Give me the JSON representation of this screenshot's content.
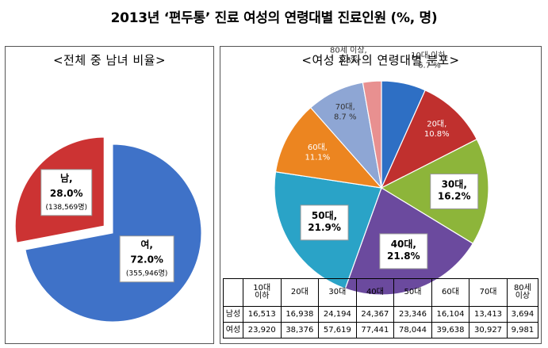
{
  "title": "2013년 ‘편두통’ 진료 여성의 연령대별 진료인원 (%, 명)",
  "left_panel": {
    "title": "<전체 중 남녀 비율>"
  },
  "right_panel": {
    "title": "<여성 환자의 연령대별 분포>"
  },
  "chart_data": [
    {
      "type": "pie",
      "title": "<전체 중 남녀 비율>",
      "slices": [
        {
          "label": "여,",
          "value": 72.0,
          "display": "72.0%",
          "count": "(355,946명)",
          "color": "#3f72c8"
        },
        {
          "label": "남,",
          "value": 28.0,
          "display": "28.0%",
          "count": "(138,569명)",
          "color": "#cc3333"
        }
      ]
    },
    {
      "type": "pie",
      "title": "<여성 환자의 연령대별 분포>",
      "slices": [
        {
          "label": "10대 이하,",
          "value": 6.7,
          "display": "6.7 %",
          "color": "#2e6fc4"
        },
        {
          "label": "20대,",
          "value": 10.8,
          "display": "10.8%",
          "color": "#c0302e"
        },
        {
          "label": "30대,",
          "value": 16.2,
          "display": "16.2%",
          "color": "#8db53a"
        },
        {
          "label": "40대,",
          "value": 21.8,
          "display": "21.8%",
          "color": "#6b4a9e"
        },
        {
          "label": "50대,",
          "value": 21.9,
          "display": "21.9%",
          "color": "#2aa3c7"
        },
        {
          "label": "60대,",
          "value": 11.1,
          "display": "11.1%",
          "color": "#ec8520"
        },
        {
          "label": "70대,",
          "value": 8.7,
          "display": "8.7 %",
          "color": "#8ea6d4"
        },
        {
          "label": "80세 이상,",
          "value": 2.8,
          "display": "2.8%",
          "color": "#e89090"
        }
      ]
    },
    {
      "type": "table",
      "columns": [
        "",
        "10대 이하",
        "20대",
        "30대",
        "40대",
        "50대",
        "60대",
        "70대",
        "80세 이상"
      ],
      "rows": [
        [
          "남성",
          "16,513",
          "16,938",
          "24,194",
          "24,367",
          "23,346",
          "16,104",
          "13,413",
          "3,694"
        ],
        [
          "여성",
          "23,920",
          "38,376",
          "57,619",
          "77,441",
          "78,044",
          "39,638",
          "30,927",
          "9,981"
        ]
      ]
    }
  ]
}
